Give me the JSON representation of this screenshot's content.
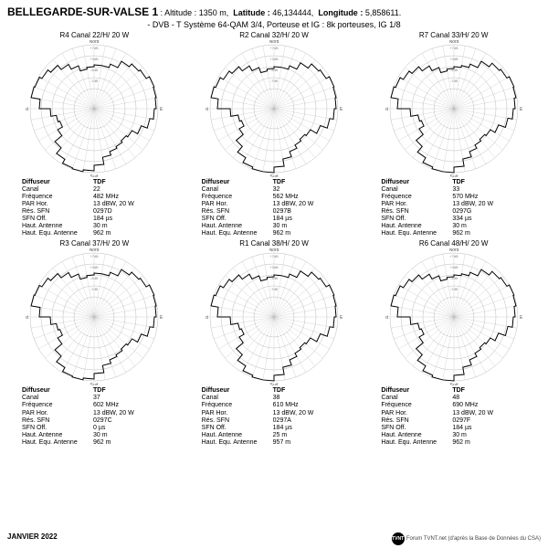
{
  "header": {
    "site_name": "BELLEGARDE-SUR-VALSE 1",
    "altitude_label": "Altitude :",
    "altitude_value": "1350 m,",
    "latitude_label": "Latitude :",
    "latitude_value": "46,134444,",
    "longitude_label": "Longitude :",
    "longitude_value": "5,858611.",
    "system_line": "- DVB - T    Système 64-QAM 3/4,  Porteuse et IG : 8k porteuses, IG 1/8"
  },
  "compass": {
    "n": "Nord",
    "s": "Sud",
    "e": "Est",
    "w": "Ouest"
  },
  "polar_style": {
    "rings": [
      22,
      34,
      46,
      58,
      70
    ],
    "ring_labels": [
      "-7dB",
      "-3dB",
      "+3dB",
      "+7dB"
    ],
    "stroke_grid": "#bbbbbb",
    "stroke_data": "#000000",
    "fill_data": "none",
    "bg": "#ffffff",
    "size": 150
  },
  "table_labels": {
    "diffuseur": "Diffuseur",
    "canal": "Canal",
    "frequence": "Fréquence",
    "par_hor": "PAR Hor.",
    "res_sfn": "Rés. SFN",
    "sfn_off": "SFN Off.",
    "haut_antenne": "Haut. Antenne",
    "haut_equ": "Haut. Equ. Antenne"
  },
  "cells": [
    {
      "title": "R4  Canal 22/H/ 20 W",
      "diffuseur": "TDF",
      "canal": "22",
      "frequence": "482 MHz",
      "par_hor": "13 dBW, 20 W",
      "res_sfn": "0297D",
      "sfn_off": "184 µs",
      "haut_antenne": "30 m",
      "haut_equ": "962 m",
      "pattern": [
        48,
        48,
        52,
        60,
        64,
        66,
        70,
        69,
        68,
        66,
        62,
        55,
        48,
        46,
        48,
        50,
        54,
        62,
        68,
        70,
        69,
        64,
        56,
        46,
        40,
        42,
        48,
        60,
        70,
        69,
        66,
        62,
        56,
        50,
        44,
        46
      ]
    },
    {
      "title": "R2  Canal 32/H/ 20 W",
      "diffuseur": "TDF",
      "canal": "32",
      "frequence": "562 MHz",
      "par_hor": "13 dBW, 20 W",
      "res_sfn": "0297B",
      "sfn_off": "184 µs",
      "haut_antenne": "30 m",
      "haut_equ": "962 m",
      "pattern": [
        46,
        46,
        50,
        58,
        64,
        66,
        70,
        69,
        68,
        66,
        62,
        54,
        46,
        44,
        46,
        50,
        56,
        64,
        70,
        70,
        68,
        62,
        54,
        44,
        38,
        40,
        48,
        62,
        70,
        68,
        64,
        60,
        54,
        48,
        42,
        44
      ]
    },
    {
      "title": "R7  Canal 33/H/ 20 W",
      "diffuseur": "TDF",
      "canal": "33",
      "frequence": "570 MHz",
      "par_hor": "13 dBW, 20 W",
      "res_sfn": "0297G",
      "sfn_off": "334 µs",
      "haut_antenne": "30 m",
      "haut_equ": "962 m",
      "pattern": [
        46,
        48,
        52,
        60,
        65,
        67,
        70,
        69,
        67,
        65,
        60,
        52,
        46,
        44,
        46,
        50,
        56,
        64,
        70,
        70,
        68,
        62,
        54,
        44,
        38,
        40,
        48,
        62,
        70,
        68,
        64,
        60,
        54,
        48,
        42,
        44
      ]
    },
    {
      "title": "R3  Canal 37/H/ 20 W",
      "diffuseur": "TDF",
      "canal": "37",
      "frequence": "602 MHz",
      "par_hor": "13 dBW, 20 W",
      "res_sfn": "0297C",
      "sfn_off": "0 µs",
      "haut_antenne": "30 m",
      "haut_equ": "962 m",
      "pattern": [
        48,
        48,
        52,
        60,
        64,
        66,
        70,
        69,
        68,
        66,
        62,
        55,
        48,
        46,
        48,
        50,
        54,
        62,
        68,
        70,
        69,
        64,
        56,
        46,
        40,
        42,
        48,
        60,
        70,
        69,
        66,
        62,
        56,
        50,
        44,
        46
      ]
    },
    {
      "title": "R1  Canal 38/H/ 20 W",
      "diffuseur": "TDF",
      "canal": "38",
      "frequence": "610 MHz",
      "par_hor": "13 dBW, 20 W",
      "res_sfn": "0297A",
      "sfn_off": "184 µs",
      "haut_antenne": "25 m",
      "haut_equ": "957 m",
      "pattern": [
        46,
        46,
        50,
        58,
        64,
        66,
        70,
        69,
        68,
        66,
        62,
        54,
        46,
        44,
        46,
        50,
        56,
        64,
        70,
        70,
        68,
        62,
        54,
        44,
        38,
        40,
        48,
        62,
        70,
        68,
        64,
        60,
        54,
        48,
        42,
        44
      ]
    },
    {
      "title": "R6  Canal 48/H/ 20 W",
      "diffuseur": "TDF",
      "canal": "48",
      "frequence": "690 MHz",
      "par_hor": "13 dBW, 20 W",
      "res_sfn": "0297F",
      "sfn_off": "184 µs",
      "haut_antenne": "30 m",
      "haut_equ": "962 m",
      "pattern": [
        46,
        48,
        52,
        60,
        65,
        67,
        70,
        69,
        67,
        65,
        60,
        52,
        46,
        44,
        46,
        50,
        56,
        64,
        70,
        70,
        68,
        62,
        54,
        44,
        38,
        40,
        48,
        62,
        70,
        68,
        64,
        60,
        54,
        48,
        42,
        44
      ]
    }
  ],
  "footer": {
    "date": "JANVIER  2022",
    "logo_text": "TVNT",
    "credit": "Forum TVNT.net (d'après la Base de Données du CSA)"
  }
}
